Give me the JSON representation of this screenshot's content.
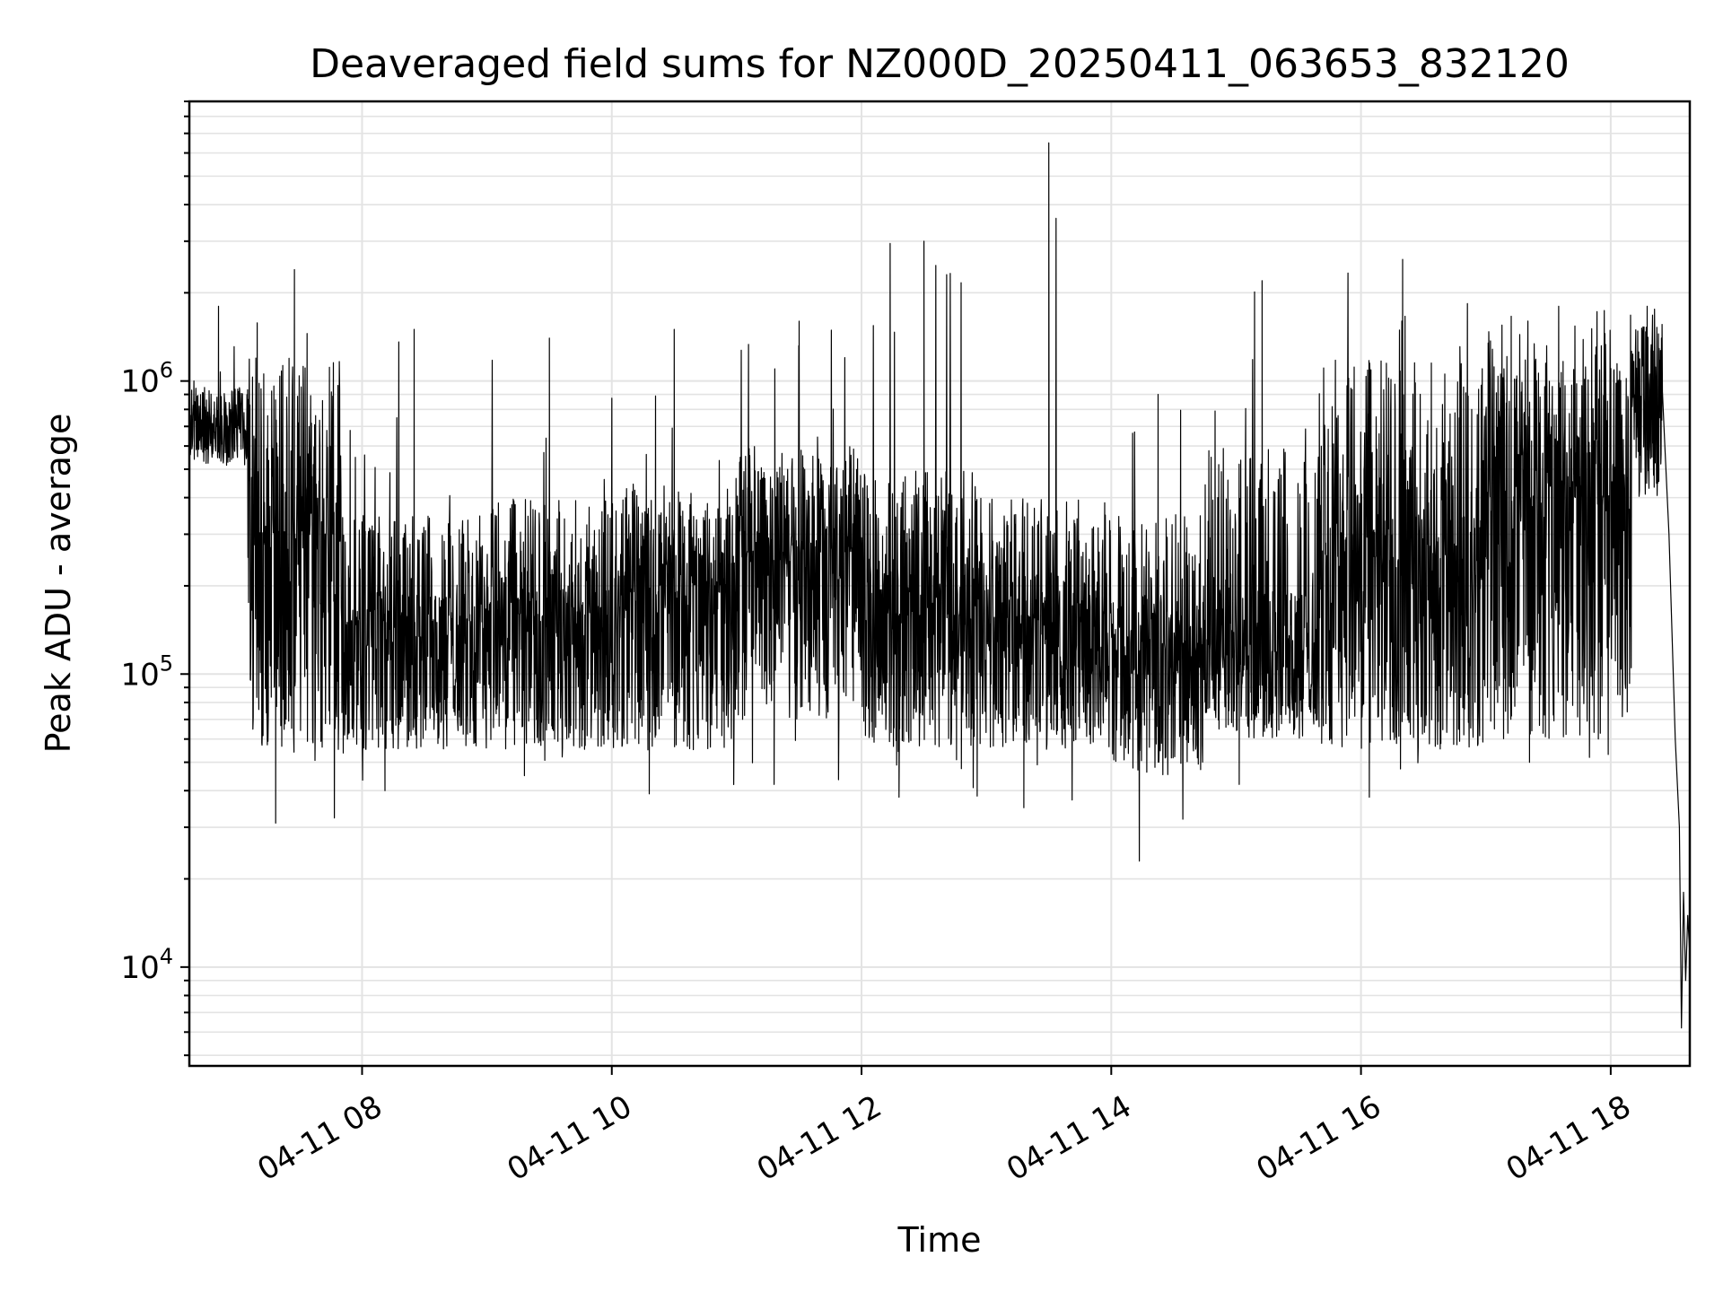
{
  "chart_data": {
    "type": "line",
    "title": "Deaveraged field sums for NZ000D_20250411_063653_832120",
    "xlabel": "Time",
    "ylabel": "Peak ADU - average",
    "y_scale": "log",
    "grid": true,
    "xlim": [
      "04-11 06:37",
      "04-11 18:38"
    ],
    "ylim": [
      4600,
      9000000
    ],
    "x_ticks": [
      "04-11 08",
      "04-11 10",
      "04-11 12",
      "04-11 14",
      "04-11 16",
      "04-11 18"
    ],
    "x_tick_hours": [
      8,
      10,
      12,
      14,
      16,
      18
    ],
    "y_ticks": [
      {
        "base": "10",
        "exp": "4",
        "value": 10000
      },
      {
        "base": "10",
        "exp": "5",
        "value": 100000
      },
      {
        "base": "10",
        "exp": "6",
        "value": 1000000
      }
    ],
    "series": [
      {
        "color": "#000000",
        "segments": [
          {
            "start": "06:37",
            "end": "07:05",
            "low": 480000,
            "high": 950000,
            "mid": 700000,
            "spike_max": 1800000
          },
          {
            "start": "07:05",
            "end": "07:50",
            "low": 55000,
            "high": 1200000,
            "mid": 300000,
            "spike_max": 2400000,
            "dip_min": 31000
          },
          {
            "start": "07:50",
            "end": "09:00",
            "low": 55000,
            "high": 350000,
            "mid": 150000,
            "spike_max": 1500000,
            "dip_min": 40000
          },
          {
            "start": "09:00",
            "end": "10:00",
            "low": 55000,
            "high": 400000,
            "mid": 160000,
            "spike_max": 1400000,
            "dip_min": 45000
          },
          {
            "start": "10:00",
            "end": "11:00",
            "low": 55000,
            "high": 450000,
            "mid": 190000,
            "spike_max": 1500000,
            "dip_min": 39000
          },
          {
            "start": "11:00",
            "end": "12:00",
            "low": 70000,
            "high": 600000,
            "mid": 260000,
            "spike_max": 1600000,
            "dip_min": 42000
          },
          {
            "start": "12:00",
            "end": "13:00",
            "low": 55000,
            "high": 500000,
            "mid": 160000,
            "spike_max": 3000000,
            "dip_min": 38000
          },
          {
            "start": "13:00",
            "end": "14:00",
            "low": 55000,
            "high": 400000,
            "mid": 150000,
            "spike_max": 6500000,
            "dip_min": 35000
          },
          {
            "start": "14:00",
            "end": "14:45",
            "low": 45000,
            "high": 350000,
            "mid": 120000,
            "spike_max": 900000,
            "dip_min": 23000
          },
          {
            "start": "14:45",
            "end": "15:40",
            "low": 60000,
            "high": 600000,
            "mid": 130000,
            "spike_max": 2200000,
            "dip_min": 42000
          },
          {
            "start": "15:40",
            "end": "17:00",
            "low": 55000,
            "high": 1200000,
            "mid": 250000,
            "spike_max": 2600000,
            "dip_min": 38000
          },
          {
            "start": "17:00",
            "end": "18:10",
            "low": 60000,
            "high": 1500000,
            "mid": 400000,
            "spike_max": 1800000,
            "dip_min": 50000
          },
          {
            "start": "18:10",
            "end": "18:25",
            "low": 350000,
            "high": 1600000,
            "mid": 800000,
            "spike_max": 1800000
          }
        ],
        "tail": [
          {
            "time": "18:26",
            "value": 600000
          },
          {
            "time": "18:28",
            "value": 300000
          },
          {
            "time": "18:31",
            "value": 60000
          },
          {
            "time": "18:33",
            "value": 30000
          },
          {
            "time": "18:34",
            "value": 6200
          },
          {
            "time": "18:35",
            "value": 18000
          },
          {
            "time": "18:36",
            "value": 9000
          },
          {
            "time": "18:37",
            "value": 15000
          },
          {
            "time": "18:38",
            "value": 11000
          }
        ]
      }
    ]
  }
}
